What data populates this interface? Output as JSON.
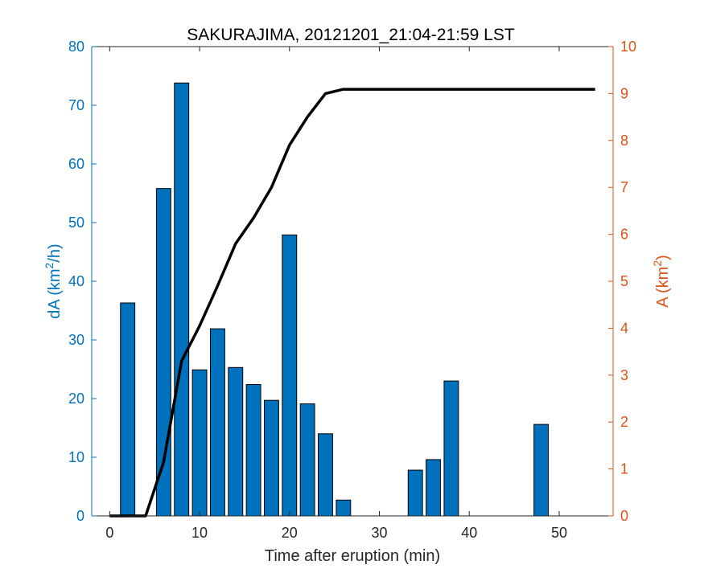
{
  "chart_data": {
    "type": "bar",
    "title": "SAKURAJIMA, 20121201_21:04-21:59 LST",
    "xlabel": "Time after eruption (min)",
    "ylabel_left": {
      "prefix": "dA (km",
      "sup": "2",
      "suffix": "/h)"
    },
    "ylabel_right": {
      "prefix": "A (km",
      "sup": "2",
      "suffix": ")"
    },
    "xlim": [
      -2,
      56
    ],
    "ylim_left": [
      0,
      80
    ],
    "ylim_right": [
      0,
      10
    ],
    "xticks": [
      0,
      10,
      20,
      30,
      40,
      50
    ],
    "yticks_left": [
      0,
      10,
      20,
      30,
      40,
      50,
      60,
      70,
      80
    ],
    "yticks_right": [
      0,
      1,
      2,
      3,
      4,
      5,
      6,
      7,
      8,
      9,
      10
    ],
    "bar_width": 1.6,
    "colors": {
      "bars": "#0072BD",
      "left_axis": "#0072BD",
      "right_axis": "#D95319",
      "line": "#000000"
    },
    "series": [
      {
        "type": "bar",
        "axis": "left",
        "x": [
          2,
          6,
          8,
          10,
          12,
          14,
          16,
          18,
          20,
          22,
          24,
          26,
          34,
          36,
          38,
          48
        ],
        "values": [
          36.3,
          55.8,
          73.8,
          24.9,
          31.9,
          25.3,
          22.4,
          19.7,
          47.9,
          19.1,
          14.0,
          2.7,
          7.8,
          9.6,
          23.0,
          15.6
        ]
      },
      {
        "type": "line",
        "axis": "right",
        "x": [
          0,
          2,
          4,
          6,
          8,
          10,
          12,
          14,
          16,
          18,
          20,
          22,
          24,
          26,
          28,
          30,
          32,
          34,
          36,
          38,
          40,
          42,
          44,
          46,
          48,
          50,
          52,
          54
        ],
        "values": [
          0,
          0,
          0,
          1.15,
          3.3,
          4.05,
          4.9,
          5.8,
          6.35,
          7.0,
          7.9,
          8.5,
          9.0,
          9.09,
          9.09,
          9.09,
          9.09,
          9.09,
          9.09,
          9.09,
          9.09,
          9.09,
          9.09,
          9.09,
          9.09,
          9.09,
          9.09,
          9.09
        ]
      }
    ]
  }
}
